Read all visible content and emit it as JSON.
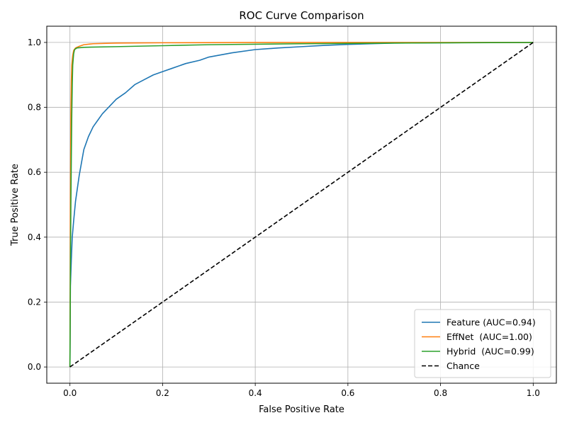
{
  "chart_data": {
    "type": "line",
    "title": "ROC Curve Comparison",
    "xlabel": "False Positive Rate",
    "ylabel": "True Positive Rate",
    "xlim": [
      -0.05,
      1.05
    ],
    "ylim": [
      -0.05,
      1.05
    ],
    "xticks": [
      "0.0",
      "0.2",
      "0.4",
      "0.6",
      "0.8",
      "1.0"
    ],
    "yticks": [
      "0.0",
      "0.2",
      "0.4",
      "0.6",
      "0.8",
      "1.0"
    ],
    "grid": true,
    "legend_position": "bottom-right",
    "series": [
      {
        "name": "Feature (AUC=0.94)",
        "color": "#1f77b4",
        "dash": "solid",
        "x": [
          0,
          0.001,
          0.003,
          0.005,
          0.008,
          0.012,
          0.016,
          0.02,
          0.025,
          0.03,
          0.035,
          0.04,
          0.05,
          0.06,
          0.07,
          0.08,
          0.09,
          0.1,
          0.12,
          0.14,
          0.16,
          0.18,
          0.2,
          0.22,
          0.25,
          0.28,
          0.3,
          0.35,
          0.4,
          0.45,
          0.5,
          0.55,
          0.6,
          0.65,
          0.7,
          0.8,
          0.9,
          1.0
        ],
        "y": [
          0,
          0.25,
          0.33,
          0.4,
          0.45,
          0.51,
          0.55,
          0.59,
          0.63,
          0.67,
          0.69,
          0.71,
          0.74,
          0.76,
          0.78,
          0.795,
          0.81,
          0.825,
          0.845,
          0.87,
          0.885,
          0.9,
          0.91,
          0.92,
          0.935,
          0.945,
          0.955,
          0.968,
          0.978,
          0.983,
          0.987,
          0.991,
          0.994,
          0.996,
          0.998,
          0.999,
          1.0,
          1.0
        ]
      },
      {
        "name": "EffNet  (AUC=1.00)",
        "color": "#ff7f0e",
        "dash": "solid",
        "x": [
          0,
          0.001,
          0.002,
          0.003,
          0.004,
          0.006,
          0.008,
          0.012,
          0.02,
          0.03,
          0.05,
          0.1,
          0.2,
          0.4,
          0.7,
          1.0
        ],
        "y": [
          0,
          0.5,
          0.78,
          0.88,
          0.93,
          0.96,
          0.975,
          0.983,
          0.988,
          0.993,
          0.996,
          0.998,
          0.999,
          1.0,
          1.0,
          1.0
        ]
      },
      {
        "name": "Hybrid  (AUC=0.99)",
        "color": "#2ca02c",
        "dash": "solid",
        "x": [
          0,
          0.001,
          0.002,
          0.003,
          0.004,
          0.005,
          0.006,
          0.008,
          0.01,
          0.015,
          0.03,
          0.1,
          0.2,
          0.3,
          0.5,
          0.7,
          1.0
        ],
        "y": [
          0,
          0.3,
          0.5,
          0.65,
          0.78,
          0.87,
          0.93,
          0.965,
          0.978,
          0.983,
          0.985,
          0.987,
          0.99,
          0.993,
          0.996,
          0.998,
          1.0
        ]
      },
      {
        "name": "Chance",
        "color": "#000000",
        "dash": "dashed",
        "x": [
          0,
          1
        ],
        "y": [
          0,
          1
        ]
      }
    ]
  }
}
